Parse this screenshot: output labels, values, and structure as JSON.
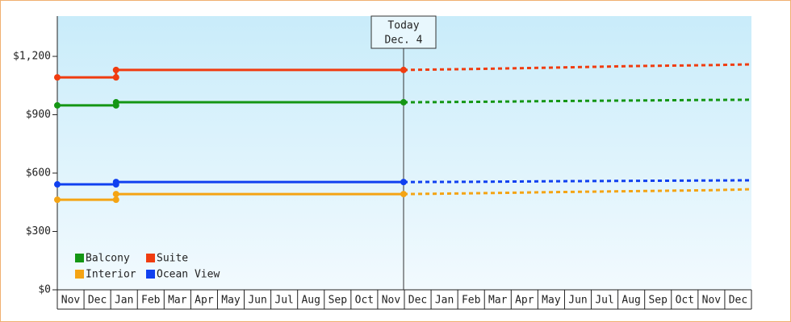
{
  "chart_data": {
    "type": "line",
    "xlim": [
      0,
      26
    ],
    "ylim": [
      0,
      1407
    ],
    "yticks": [
      {
        "value": 0,
        "label": "$0"
      },
      {
        "value": 300,
        "label": "$300"
      },
      {
        "value": 600,
        "label": "$600"
      },
      {
        "value": 900,
        "label": "$900"
      },
      {
        "value": 1200,
        "label": "$1,200"
      }
    ],
    "months": [
      "Nov",
      "Dec",
      "Jan",
      "Feb",
      "Mar",
      "Apr",
      "May",
      "Jun",
      "Jul",
      "Aug",
      "Sep",
      "Oct",
      "Nov",
      "Dec",
      "Jan",
      "Feb",
      "Mar",
      "Apr",
      "May",
      "Jun",
      "Jul",
      "Aug",
      "Sep",
      "Oct",
      "Nov",
      "Dec"
    ],
    "x": [
      0,
      2.2,
      2.2,
      12.97
    ],
    "forecast_x": [
      12.97,
      15.5,
      18.5,
      21.5,
      24.5,
      26
    ],
    "today": {
      "x": 12.97,
      "label": "Today",
      "date": "Dec. 4"
    },
    "series": [
      {
        "name": "Balcony",
        "color": "#149614",
        "values": [
          948,
          948,
          964,
          964
        ],
        "forecast": [
          964,
          966,
          970,
          973,
          976,
          977
        ]
      },
      {
        "name": "Suite",
        "color": "#f03c10",
        "values": [
          1092,
          1092,
          1130,
          1130
        ],
        "forecast": [
          1130,
          1135,
          1142,
          1150,
          1155,
          1159
        ]
      },
      {
        "name": "Interior",
        "color": "#f4a414",
        "values": [
          463,
          463,
          492,
          492
        ],
        "forecast": [
          492,
          496,
          502,
          507,
          512,
          517
        ]
      },
      {
        "name": "Ocean View",
        "color": "#1040f0",
        "values": [
          542,
          542,
          554,
          554
        ],
        "forecast": [
          554,
          555,
          558,
          560,
          562,
          563
        ]
      }
    ]
  }
}
